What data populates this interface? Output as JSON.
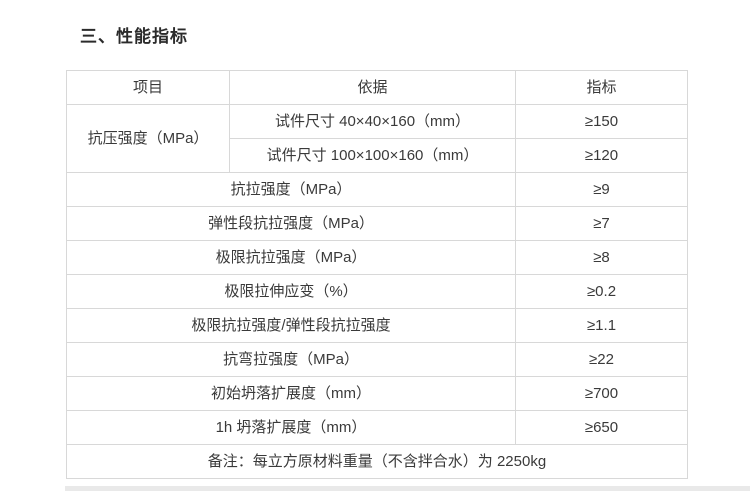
{
  "page": {
    "title": "三、性能指标"
  },
  "table": {
    "headers": {
      "project": "项目",
      "basis": "依据",
      "indicator": "指标"
    },
    "compressive": {
      "label": "抗压强度（MPa）",
      "rows": [
        {
          "basis": "试件尺寸 40×40×160（mm）",
          "value": "≥150"
        },
        {
          "basis": "试件尺寸 100×100×160（mm）",
          "value": "≥120"
        }
      ]
    },
    "rows": [
      {
        "label": "抗拉强度（MPa）",
        "value": "≥9"
      },
      {
        "label": "弹性段抗拉强度（MPa）",
        "value": "≥7"
      },
      {
        "label": "极限抗拉强度（MPa）",
        "value": "≥8"
      },
      {
        "label": "极限拉伸应变（%）",
        "value": "≥0.2"
      },
      {
        "label": "极限抗拉强度/弹性段抗拉强度",
        "value": "≥1.1"
      },
      {
        "label": "抗弯拉强度（MPa）",
        "value": "≥22"
      },
      {
        "label": "初始坍落扩展度（mm）",
        "value": "≥700"
      },
      {
        "label": "1h 坍落扩展度（mm）",
        "value": "≥650"
      }
    ],
    "remark": "备注：每立方原材料重量（不含拌合水）为 2250kg"
  },
  "colors": {
    "border": "#d8d8d8",
    "text": "#3a3a3a",
    "background": "#ffffff",
    "bottom_edge": "#e9e9e9"
  }
}
